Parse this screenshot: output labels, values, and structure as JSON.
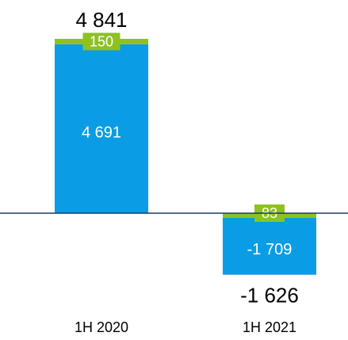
{
  "chart_data": {
    "type": "bar",
    "stacked": true,
    "categories": [
      "1H 2020",
      "1H 2021"
    ],
    "series": [
      {
        "values": [
          4691,
          -1709
        ],
        "color": "#0a9ce4",
        "labels": [
          "4 691",
          "-1 709"
        ]
      },
      {
        "values": [
          150,
          83
        ],
        "color": "#8dc21f",
        "labels": [
          "150",
          "83"
        ]
      }
    ],
    "totals": [
      4841,
      -1626
    ],
    "total_labels": [
      "4 841",
      "-1 626"
    ],
    "grid": false,
    "legend": "none",
    "colors": {
      "axis": "#1f3864",
      "segment_label": "#ffffff",
      "total_label": "#000000"
    }
  }
}
